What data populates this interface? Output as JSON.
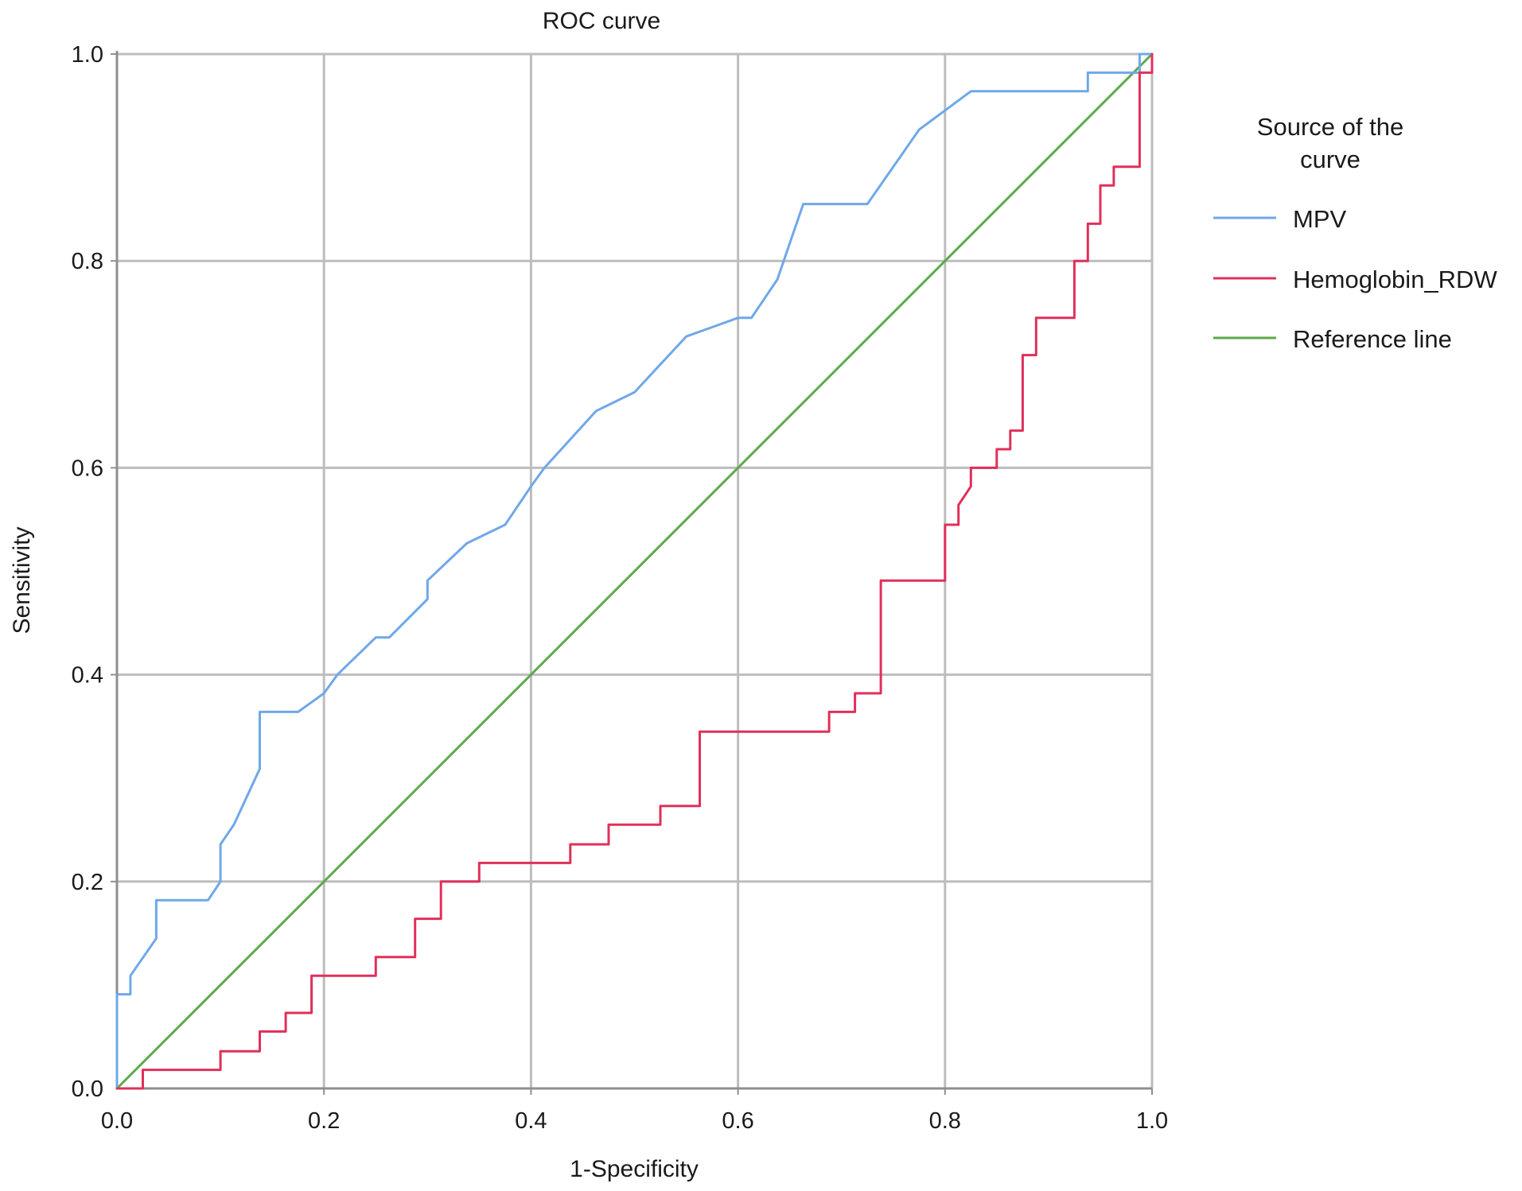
{
  "chart_data": {
    "type": "line",
    "title": "ROC curve",
    "xlabel": "1-Specificity",
    "ylabel": "Sensitivity",
    "xlim": [
      0,
      1
    ],
    "ylim": [
      0,
      1
    ],
    "grid": true,
    "xticks": [
      "0.0",
      "0.2",
      "0.4",
      "0.6",
      "0.8",
      "1.0"
    ],
    "yticks": [
      "0.0",
      "0.2",
      "0.4",
      "0.6",
      "0.8",
      "1.0"
    ],
    "legend": {
      "title": [
        "Source of the",
        "curve"
      ],
      "position": "right"
    },
    "series": [
      {
        "name": "MPV",
        "color": "#6fa8e8",
        "points": [
          [
            0.0,
            0.0
          ],
          [
            0.0,
            0.091
          ],
          [
            0.013,
            0.091
          ],
          [
            0.013,
            0.109
          ],
          [
            0.038,
            0.145
          ],
          [
            0.038,
            0.182
          ],
          [
            0.088,
            0.182
          ],
          [
            0.1,
            0.2
          ],
          [
            0.1,
            0.236
          ],
          [
            0.113,
            0.255
          ],
          [
            0.138,
            0.309
          ],
          [
            0.138,
            0.364
          ],
          [
            0.175,
            0.364
          ],
          [
            0.2,
            0.382
          ],
          [
            0.213,
            0.4
          ],
          [
            0.25,
            0.436
          ],
          [
            0.263,
            0.436
          ],
          [
            0.3,
            0.473
          ],
          [
            0.3,
            0.491
          ],
          [
            0.338,
            0.527
          ],
          [
            0.375,
            0.545
          ],
          [
            0.4,
            0.582
          ],
          [
            0.413,
            0.6
          ],
          [
            0.463,
            0.655
          ],
          [
            0.5,
            0.673
          ],
          [
            0.55,
            0.727
          ],
          [
            0.6,
            0.745
          ],
          [
            0.613,
            0.745
          ],
          [
            0.638,
            0.782
          ],
          [
            0.663,
            0.855
          ],
          [
            0.725,
            0.855
          ],
          [
            0.775,
            0.927
          ],
          [
            0.825,
            0.964
          ],
          [
            0.938,
            0.964
          ],
          [
            0.938,
            0.982
          ],
          [
            0.988,
            0.982
          ],
          [
            0.988,
            1.0
          ],
          [
            1.0,
            1.0
          ]
        ]
      },
      {
        "name": "Hemoglobin_RDW",
        "color": "#e0305a",
        "points": [
          [
            0.0,
            0.0
          ],
          [
            0.025,
            0.0
          ],
          [
            0.025,
            0.018
          ],
          [
            0.1,
            0.018
          ],
          [
            0.1,
            0.036
          ],
          [
            0.138,
            0.036
          ],
          [
            0.138,
            0.055
          ],
          [
            0.163,
            0.055
          ],
          [
            0.163,
            0.073
          ],
          [
            0.188,
            0.073
          ],
          [
            0.188,
            0.109
          ],
          [
            0.25,
            0.109
          ],
          [
            0.25,
            0.127
          ],
          [
            0.288,
            0.127
          ],
          [
            0.288,
            0.164
          ],
          [
            0.313,
            0.164
          ],
          [
            0.313,
            0.2
          ],
          [
            0.35,
            0.2
          ],
          [
            0.35,
            0.218
          ],
          [
            0.438,
            0.218
          ],
          [
            0.438,
            0.236
          ],
          [
            0.475,
            0.236
          ],
          [
            0.475,
            0.255
          ],
          [
            0.525,
            0.255
          ],
          [
            0.525,
            0.273
          ],
          [
            0.563,
            0.273
          ],
          [
            0.563,
            0.345
          ],
          [
            0.688,
            0.345
          ],
          [
            0.688,
            0.364
          ],
          [
            0.713,
            0.364
          ],
          [
            0.713,
            0.382
          ],
          [
            0.738,
            0.382
          ],
          [
            0.738,
            0.491
          ],
          [
            0.8,
            0.491
          ],
          [
            0.8,
            0.545
          ],
          [
            0.813,
            0.545
          ],
          [
            0.813,
            0.564
          ],
          [
            0.825,
            0.582
          ],
          [
            0.825,
            0.6
          ],
          [
            0.85,
            0.6
          ],
          [
            0.85,
            0.618
          ],
          [
            0.863,
            0.618
          ],
          [
            0.863,
            0.636
          ],
          [
            0.875,
            0.636
          ],
          [
            0.875,
            0.709
          ],
          [
            0.888,
            0.709
          ],
          [
            0.888,
            0.745
          ],
          [
            0.925,
            0.745
          ],
          [
            0.925,
            0.8
          ],
          [
            0.938,
            0.8
          ],
          [
            0.938,
            0.836
          ],
          [
            0.95,
            0.836
          ],
          [
            0.95,
            0.873
          ],
          [
            0.963,
            0.873
          ],
          [
            0.963,
            0.891
          ],
          [
            0.988,
            0.891
          ],
          [
            0.988,
            0.982
          ],
          [
            1.0,
            0.982
          ],
          [
            1.0,
            1.0
          ]
        ]
      },
      {
        "name": "Reference line",
        "color": "#5aab4b",
        "points": [
          [
            0.0,
            0.0
          ],
          [
            1.0,
            1.0
          ]
        ]
      }
    ]
  }
}
